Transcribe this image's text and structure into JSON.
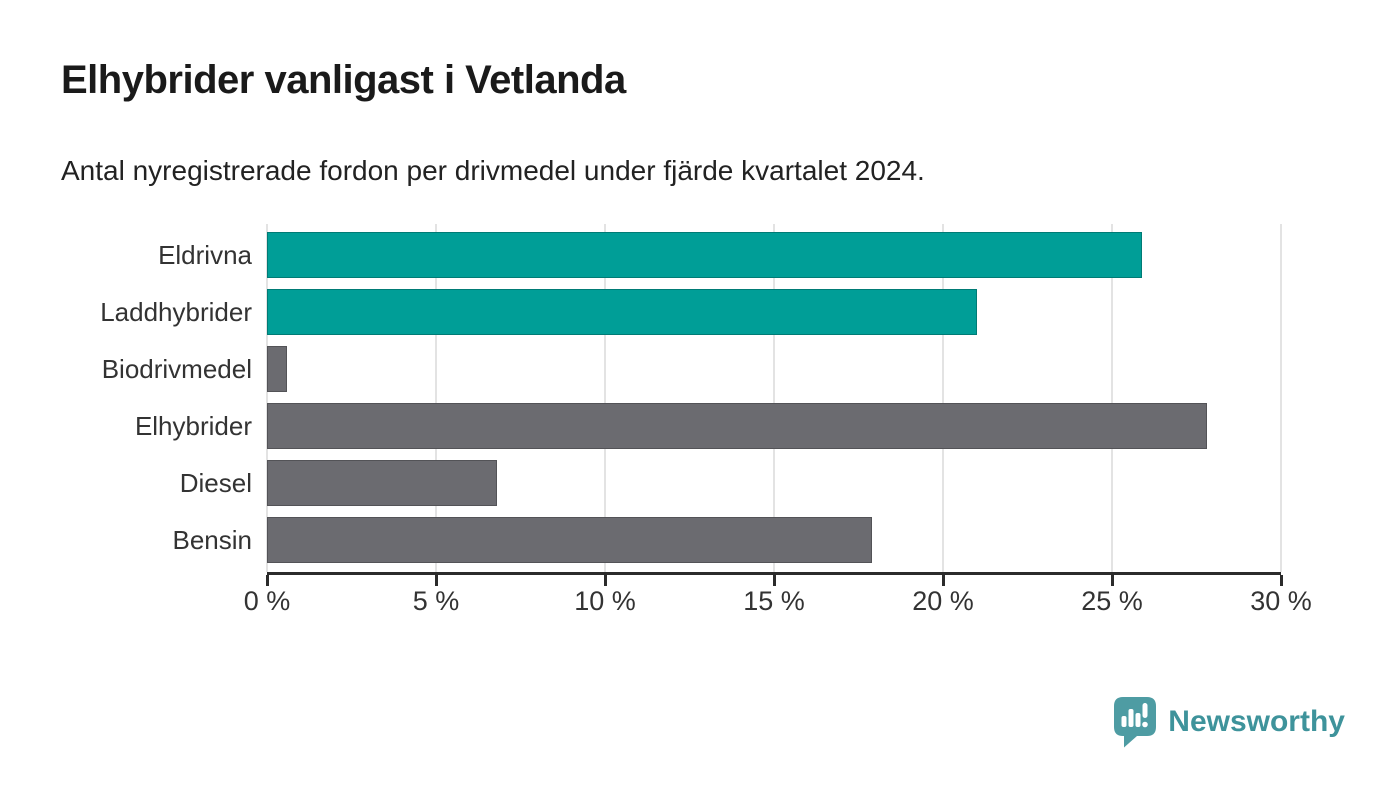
{
  "page": {
    "background": "#ffffff"
  },
  "chart_data": {
    "type": "bar",
    "orientation": "horizontal",
    "title": "Elhybrider vanligast i Vetlanda",
    "subtitle": "Antal nyregistrerade fordon per drivmedel under fjärde kvartalet 2024.",
    "categories": [
      "Eldrivna",
      "Laddhybrider",
      "Biodrivmedel",
      "Elhybrider",
      "Diesel",
      "Bensin"
    ],
    "values": [
      25.9,
      21.0,
      0.6,
      27.8,
      6.8,
      17.9
    ],
    "unit": "%",
    "bar_colors": [
      "#009e97",
      "#009e97",
      "#6b6b70",
      "#6b6b70",
      "#6b6b70",
      "#6b6b70"
    ],
    "highlight_color": "#009e97",
    "default_color": "#6b6b70",
    "xlim": [
      0,
      30
    ],
    "x_ticks": [
      0,
      5,
      10,
      15,
      20,
      25,
      30
    ],
    "x_tick_labels": [
      "0 %",
      "5 %",
      "10 %",
      "15 %",
      "20 %",
      "25 %",
      "30 %"
    ],
    "grid": "vertical-gridlines-on",
    "gridline_color": "#e3e3e3",
    "axis_color": "#2b2b2b",
    "legend": "none"
  },
  "branding": {
    "logo_text": "Newsworthy",
    "logo_text_color": "#3e939b",
    "icon_name": "newsworthy-chart-bubble-icon",
    "icon_color": "#4e9ca3"
  }
}
